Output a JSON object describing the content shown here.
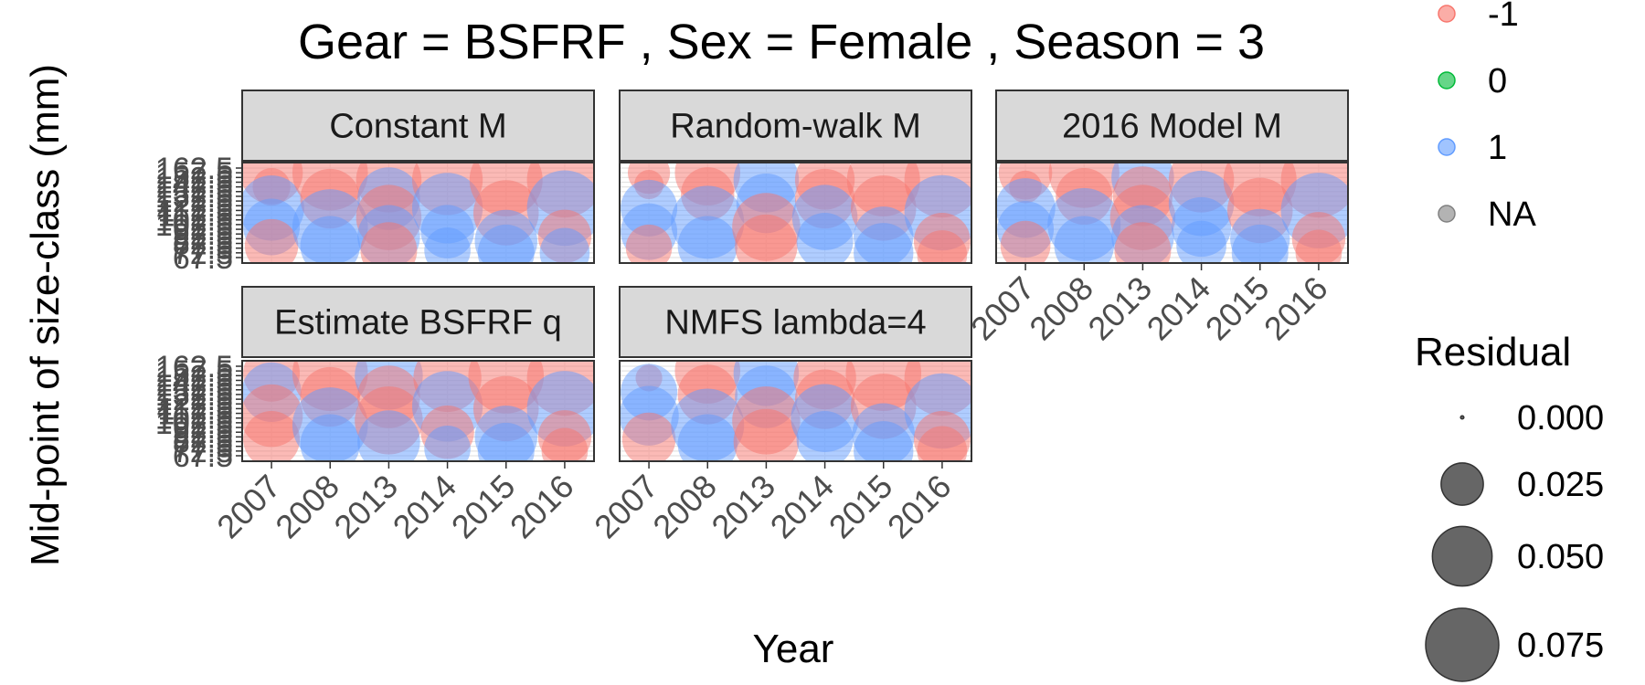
{
  "chart_data": {
    "type": "scatter",
    "title": "Gear = BSFRF , Sex = Female , Season = 3",
    "xlabel": "Year",
    "ylabel": "Mid-point of size-class (mm)",
    "x_categories": [
      "2007",
      "2008",
      "2013",
      "2014",
      "2015",
      "2016"
    ],
    "y_range": [
      67.5,
      162.5
    ],
    "y_tick_labels": [
      "67.5",
      "72.5",
      "77.5",
      "82.5",
      "87.5",
      "92.5",
      "97.5",
      "102.5",
      "107.5",
      "112.5",
      "117.5",
      "122.5",
      "127.5",
      "132.5",
      "137.5",
      "142.5",
      "147.5",
      "152.5",
      "157.5",
      "162.5"
    ],
    "grid": true,
    "legend": {
      "sign_entries": [
        {
          "label": "-1",
          "color": "#F8766D"
        },
        {
          "label": "0",
          "color": "#00BA38"
        },
        {
          "label": "1",
          "color": "#619CFF"
        },
        {
          "label": "NA",
          "color": "#808080"
        }
      ],
      "size_title": "Residual",
      "size_entries": [
        "0.000",
        "0.025",
        "0.050",
        "0.075"
      ],
      "size_values": [
        0.0,
        0.025,
        0.05,
        0.075
      ]
    },
    "panels": [
      {
        "name": "Constant M",
        "points": [
          {
            "year": "2007",
            "y": 157.5,
            "r": 0.055,
            "s": -1
          },
          {
            "year": "2007",
            "y": 142.5,
            "r": 0.02,
            "s": -1
          },
          {
            "year": "2007",
            "y": 120.0,
            "r": 0.06,
            "s": 1
          },
          {
            "year": "2007",
            "y": 100.0,
            "r": 0.045,
            "s": 1
          },
          {
            "year": "2007",
            "y": 80.0,
            "r": 0.04,
            "s": -1
          },
          {
            "year": "2008",
            "y": 157.5,
            "r": 0.08,
            "s": -1
          },
          {
            "year": "2008",
            "y": 130.0,
            "r": 0.05,
            "s": -1
          },
          {
            "year": "2008",
            "y": 100.0,
            "r": 0.08,
            "s": 1
          },
          {
            "year": "2008",
            "y": 80.0,
            "r": 0.05,
            "s": 1
          },
          {
            "year": "2013",
            "y": 150.0,
            "r": 0.06,
            "s": -1
          },
          {
            "year": "2013",
            "y": 130.0,
            "r": 0.055,
            "s": 1
          },
          {
            "year": "2013",
            "y": 110.0,
            "r": 0.06,
            "s": -1
          },
          {
            "year": "2013",
            "y": 90.0,
            "r": 0.055,
            "s": 1
          },
          {
            "year": "2013",
            "y": 75.0,
            "r": 0.045,
            "s": -1
          },
          {
            "year": "2014",
            "y": 150.0,
            "r": 0.07,
            "s": -1
          },
          {
            "year": "2014",
            "y": 120.0,
            "r": 0.07,
            "s": 1
          },
          {
            "year": "2014",
            "y": 95.0,
            "r": 0.04,
            "s": 1
          },
          {
            "year": "2014",
            "y": 75.0,
            "r": 0.03,
            "s": 1
          },
          {
            "year": "2015",
            "y": 150.0,
            "r": 0.075,
            "s": -1
          },
          {
            "year": "2015",
            "y": 115.0,
            "r": 0.06,
            "s": -1
          },
          {
            "year": "2015",
            "y": 85.0,
            "r": 0.055,
            "s": 1
          },
          {
            "year": "2015",
            "y": 72.5,
            "r": 0.045,
            "s": 1
          },
          {
            "year": "2016",
            "y": 150.0,
            "r": 0.08,
            "s": -1
          },
          {
            "year": "2016",
            "y": 120.0,
            "r": 0.08,
            "s": 1
          },
          {
            "year": "2016",
            "y": 90.0,
            "r": 0.04,
            "s": -1
          },
          {
            "year": "2016",
            "y": 72.5,
            "r": 0.035,
            "s": 1
          }
        ]
      },
      {
        "name": "Random-walk M",
        "points": [
          {
            "year": "2007",
            "y": 157.5,
            "r": 0.025,
            "s": -1
          },
          {
            "year": "2007",
            "y": 145.0,
            "r": 0.012,
            "s": -1
          },
          {
            "year": "2007",
            "y": 120.0,
            "r": 0.045,
            "s": 1
          },
          {
            "year": "2007",
            "y": 95.0,
            "r": 0.045,
            "s": 1
          },
          {
            "year": "2007",
            "y": 78.0,
            "r": 0.03,
            "s": -1
          },
          {
            "year": "2008",
            "y": 157.5,
            "r": 0.06,
            "s": -1
          },
          {
            "year": "2008",
            "y": 135.0,
            "r": 0.04,
            "s": -1
          },
          {
            "year": "2008",
            "y": 105.0,
            "r": 0.075,
            "s": 1
          },
          {
            "year": "2008",
            "y": 80.0,
            "r": 0.05,
            "s": 1
          },
          {
            "year": "2013",
            "y": 150.0,
            "r": 0.06,
            "s": 1
          },
          {
            "year": "2013",
            "y": 125.0,
            "r": 0.05,
            "s": 1
          },
          {
            "year": "2013",
            "y": 100.0,
            "r": 0.065,
            "s": -1
          },
          {
            "year": "2013",
            "y": 80.0,
            "r": 0.055,
            "s": -1
          },
          {
            "year": "2014",
            "y": 150.0,
            "r": 0.05,
            "s": -1
          },
          {
            "year": "2014",
            "y": 130.0,
            "r": 0.05,
            "s": -1
          },
          {
            "year": "2014",
            "y": 110.0,
            "r": 0.06,
            "s": 1
          },
          {
            "year": "2014",
            "y": 85.0,
            "r": 0.045,
            "s": 1
          },
          {
            "year": "2015",
            "y": 150.0,
            "r": 0.075,
            "s": -1
          },
          {
            "year": "2015",
            "y": 120.0,
            "r": 0.06,
            "s": -1
          },
          {
            "year": "2015",
            "y": 90.0,
            "r": 0.05,
            "s": 1
          },
          {
            "year": "2015",
            "y": 72.5,
            "r": 0.05,
            "s": 1
          },
          {
            "year": "2016",
            "y": 150.0,
            "r": 0.08,
            "s": -1
          },
          {
            "year": "2016",
            "y": 115.0,
            "r": 0.08,
            "s": 1
          },
          {
            "year": "2016",
            "y": 85.0,
            "r": 0.045,
            "s": -1
          },
          {
            "year": "2016",
            "y": 70.0,
            "r": 0.035,
            "s": -1
          }
        ]
      },
      {
        "name": "2016 Model M",
        "points": [
          {
            "year": "2007",
            "y": 157.5,
            "r": 0.04,
            "s": -1
          },
          {
            "year": "2007",
            "y": 142.5,
            "r": 0.015,
            "s": -1
          },
          {
            "year": "2007",
            "y": 120.0,
            "r": 0.05,
            "s": 1
          },
          {
            "year": "2007",
            "y": 97.5,
            "r": 0.045,
            "s": 1
          },
          {
            "year": "2007",
            "y": 80.0,
            "r": 0.035,
            "s": -1
          },
          {
            "year": "2008",
            "y": 157.5,
            "r": 0.07,
            "s": -1
          },
          {
            "year": "2008",
            "y": 132.5,
            "r": 0.045,
            "s": -1
          },
          {
            "year": "2008",
            "y": 102.5,
            "r": 0.075,
            "s": 1
          },
          {
            "year": "2008",
            "y": 80.0,
            "r": 0.05,
            "s": 1
          },
          {
            "year": "2013",
            "y": 152.5,
            "r": 0.055,
            "s": 1
          },
          {
            "year": "2013",
            "y": 132.5,
            "r": 0.05,
            "s": -1
          },
          {
            "year": "2013",
            "y": 110.0,
            "r": 0.06,
            "s": -1
          },
          {
            "year": "2013",
            "y": 90.0,
            "r": 0.055,
            "s": 1
          },
          {
            "year": "2013",
            "y": 75.0,
            "r": 0.045,
            "s": -1
          },
          {
            "year": "2014",
            "y": 150.0,
            "r": 0.06,
            "s": -1
          },
          {
            "year": "2014",
            "y": 125.0,
            "r": 0.06,
            "s": 1
          },
          {
            "year": "2014",
            "y": 100.0,
            "r": 0.05,
            "s": 1
          },
          {
            "year": "2014",
            "y": 80.0,
            "r": 0.035,
            "s": 1
          },
          {
            "year": "2015",
            "y": 150.0,
            "r": 0.075,
            "s": -1
          },
          {
            "year": "2015",
            "y": 117.5,
            "r": 0.06,
            "s": -1
          },
          {
            "year": "2015",
            "y": 87.5,
            "r": 0.05,
            "s": 1
          },
          {
            "year": "2015",
            "y": 72.5,
            "r": 0.045,
            "s": 1
          },
          {
            "year": "2016",
            "y": 150.0,
            "r": 0.08,
            "s": -1
          },
          {
            "year": "2016",
            "y": 117.5,
            "r": 0.08,
            "s": 1
          },
          {
            "year": "2016",
            "y": 87.5,
            "r": 0.04,
            "s": -1
          },
          {
            "year": "2016",
            "y": 72.5,
            "r": 0.03,
            "s": -1
          }
        ]
      },
      {
        "name": "Estimate BSFRF q",
        "points": [
          {
            "year": "2007",
            "y": 155.0,
            "r": 0.045,
            "s": -1
          },
          {
            "year": "2007",
            "y": 135.0,
            "r": 0.05,
            "s": 1
          },
          {
            "year": "2007",
            "y": 110.0,
            "r": 0.055,
            "s": -1
          },
          {
            "year": "2007",
            "y": 85.0,
            "r": 0.045,
            "s": -1
          },
          {
            "year": "2008",
            "y": 155.0,
            "r": 0.08,
            "s": -1
          },
          {
            "year": "2008",
            "y": 130.0,
            "r": 0.05,
            "s": -1
          },
          {
            "year": "2008",
            "y": 100.0,
            "r": 0.08,
            "s": 1
          },
          {
            "year": "2008",
            "y": 80.0,
            "r": 0.05,
            "s": 1
          },
          {
            "year": "2013",
            "y": 152.5,
            "r": 0.065,
            "s": 1
          },
          {
            "year": "2013",
            "y": 130.0,
            "r": 0.055,
            "s": -1
          },
          {
            "year": "2013",
            "y": 105.0,
            "r": 0.065,
            "s": -1
          },
          {
            "year": "2013",
            "y": 82.5,
            "r": 0.055,
            "s": 1
          },
          {
            "year": "2014",
            "y": 150.0,
            "r": 0.065,
            "s": -1
          },
          {
            "year": "2014",
            "y": 120.0,
            "r": 0.07,
            "s": 1
          },
          {
            "year": "2014",
            "y": 92.5,
            "r": 0.04,
            "s": -1
          },
          {
            "year": "2014",
            "y": 75.0,
            "r": 0.03,
            "s": 1
          },
          {
            "year": "2015",
            "y": 152.5,
            "r": 0.08,
            "s": -1
          },
          {
            "year": "2015",
            "y": 117.5,
            "r": 0.06,
            "s": -1
          },
          {
            "year": "2015",
            "y": 87.5,
            "r": 0.055,
            "s": 1
          },
          {
            "year": "2015",
            "y": 72.5,
            "r": 0.045,
            "s": 1
          },
          {
            "year": "2016",
            "y": 150.0,
            "r": 0.08,
            "s": -1
          },
          {
            "year": "2016",
            "y": 117.5,
            "r": 0.08,
            "s": 1
          },
          {
            "year": "2016",
            "y": 87.5,
            "r": 0.04,
            "s": -1
          },
          {
            "year": "2016",
            "y": 72.5,
            "r": 0.03,
            "s": -1
          }
        ]
      },
      {
        "name": "NMFS lambda=4",
        "points": [
          {
            "year": "2007",
            "y": 150.0,
            "r": 0.01,
            "s": -1
          },
          {
            "year": "2007",
            "y": 135.0,
            "r": 0.045,
            "s": 1
          },
          {
            "year": "2007",
            "y": 110.0,
            "r": 0.05,
            "s": 1
          },
          {
            "year": "2007",
            "y": 85.0,
            "r": 0.04,
            "s": -1
          },
          {
            "year": "2008",
            "y": 157.5,
            "r": 0.06,
            "s": -1
          },
          {
            "year": "2008",
            "y": 132.5,
            "r": 0.05,
            "s": -1
          },
          {
            "year": "2008",
            "y": 100.0,
            "r": 0.075,
            "s": 1
          },
          {
            "year": "2008",
            "y": 80.0,
            "r": 0.05,
            "s": 1
          },
          {
            "year": "2013",
            "y": 155.0,
            "r": 0.06,
            "s": 1
          },
          {
            "year": "2013",
            "y": 130.0,
            "r": 0.055,
            "s": 1
          },
          {
            "year": "2013",
            "y": 105.0,
            "r": 0.065,
            "s": -1
          },
          {
            "year": "2013",
            "y": 82.5,
            "r": 0.06,
            "s": -1
          },
          {
            "year": "2014",
            "y": 150.0,
            "r": 0.055,
            "s": -1
          },
          {
            "year": "2014",
            "y": 127.5,
            "r": 0.05,
            "s": -1
          },
          {
            "year": "2014",
            "y": 107.5,
            "r": 0.065,
            "s": 1
          },
          {
            "year": "2014",
            "y": 85.0,
            "r": 0.045,
            "s": 1
          },
          {
            "year": "2015",
            "y": 155.0,
            "r": 0.08,
            "s": -1
          },
          {
            "year": "2015",
            "y": 120.0,
            "r": 0.06,
            "s": -1
          },
          {
            "year": "2015",
            "y": 90.0,
            "r": 0.055,
            "s": 1
          },
          {
            "year": "2015",
            "y": 72.5,
            "r": 0.05,
            "s": 1
          },
          {
            "year": "2016",
            "y": 150.0,
            "r": 0.08,
            "s": -1
          },
          {
            "year": "2016",
            "y": 115.0,
            "r": 0.08,
            "s": 1
          },
          {
            "year": "2016",
            "y": 85.0,
            "r": 0.045,
            "s": -1
          },
          {
            "year": "2016",
            "y": 72.5,
            "r": 0.035,
            "s": -1
          }
        ]
      }
    ]
  }
}
